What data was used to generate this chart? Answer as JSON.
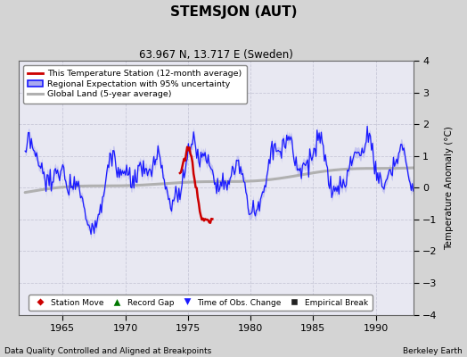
{
  "title": "STEMSJON (AUT)",
  "subtitle": "63.967 N, 13.717 E (Sweden)",
  "ylabel": "Temperature Anomaly (°C)",
  "footer_left": "Data Quality Controlled and Aligned at Breakpoints",
  "footer_right": "Berkeley Earth",
  "xlim": [
    1961.5,
    1993.0
  ],
  "ylim": [
    -4,
    4
  ],
  "yticks": [
    -4,
    -3,
    -2,
    -1,
    0,
    1,
    2,
    3,
    4
  ],
  "xticks": [
    1965,
    1970,
    1975,
    1980,
    1985,
    1990
  ],
  "fig_bg": "#d4d4d4",
  "plot_bg": "#e8e8f2",
  "blue_line_color": "#1a1aff",
  "blue_fill_color": "#aaaaee",
  "red_line_color": "#cc0000",
  "gray_line_color": "#b0b0b0",
  "grid_color": "#c8c8d8",
  "legend_items": [
    {
      "label": "This Temperature Station (12-month average)",
      "color": "#cc0000",
      "lw": 2
    },
    {
      "label": "Regional Expectation with 95% uncertainty",
      "color": "#1a1aff",
      "lw": 1.5
    },
    {
      "label": "Global Land (5-year average)",
      "color": "#b0b0b0",
      "lw": 2
    }
  ],
  "marker_legend": [
    {
      "label": "Station Move",
      "marker": "D",
      "color": "#cc0000"
    },
    {
      "label": "Record Gap",
      "marker": "^",
      "color": "#007700"
    },
    {
      "label": "Time of Obs. Change",
      "marker": "v",
      "color": "#1a1aff"
    },
    {
      "label": "Empirical Break",
      "marker": "s",
      "color": "#222222"
    }
  ]
}
